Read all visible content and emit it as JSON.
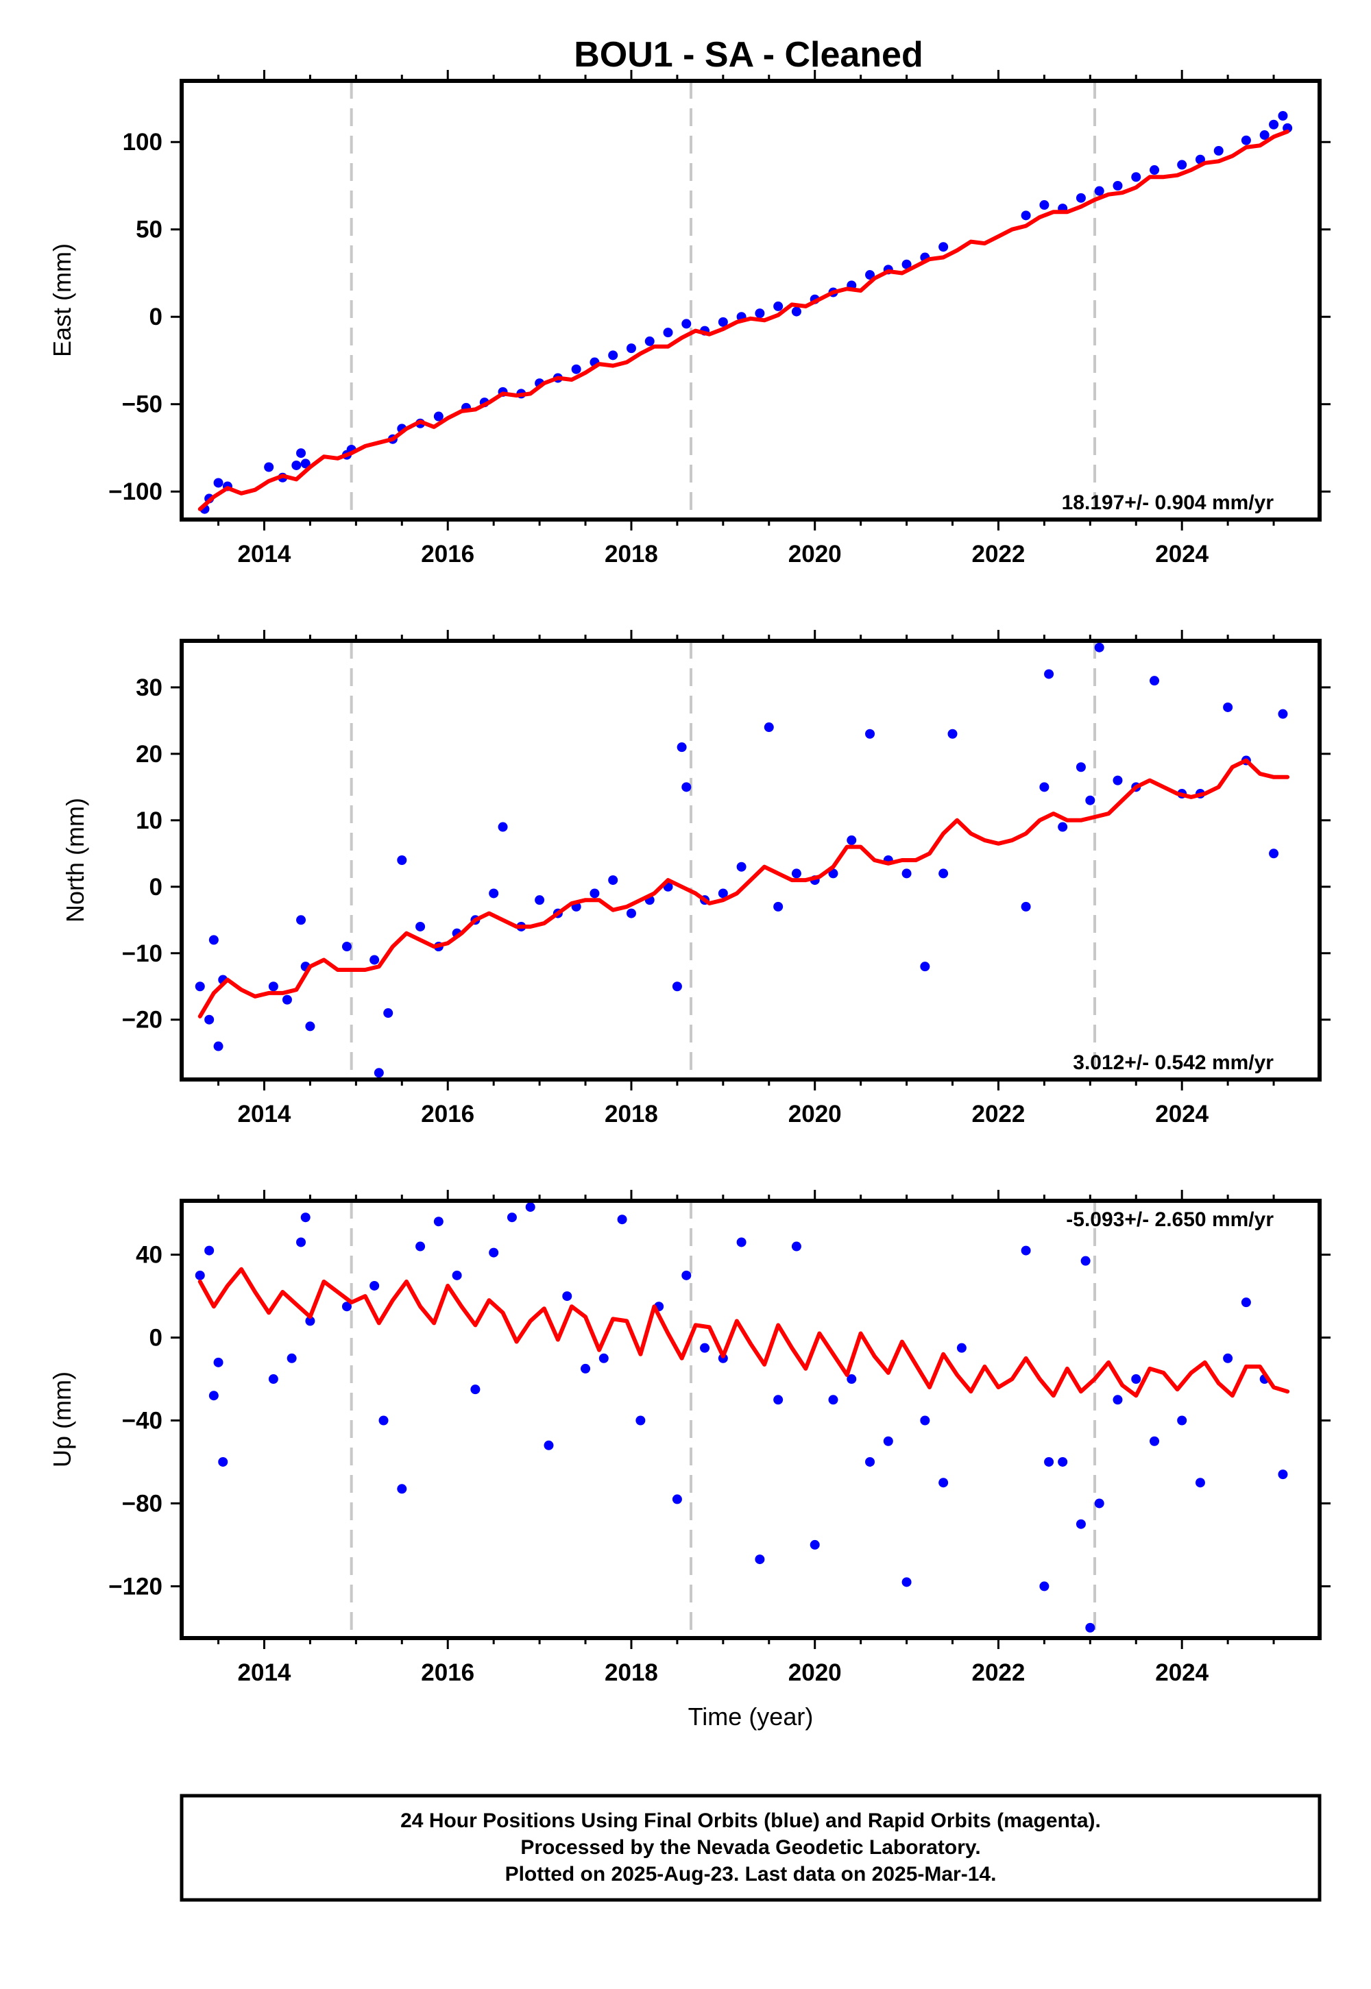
{
  "colors": {
    "data_points": "#0000ff",
    "model_curve": "#ff0000",
    "event_lines": "#c8c8c8",
    "frame": "#000000"
  },
  "chart_data": [
    {
      "type": "scatter",
      "title": "BOU1  - SA - Cleaned",
      "ylabel": "East (mm)",
      "xlabel": "",
      "xlim": [
        2013.1,
        2025.5
      ],
      "ylim": [
        -116,
        135
      ],
      "xticks": [
        2014,
        2016,
        2018,
        2020,
        2022,
        2024
      ],
      "yticks": [
        -100,
        -50,
        0,
        50,
        100
      ],
      "vertical_event_lines": [
        2014.95,
        2018.65,
        2023.05
      ],
      "rate_text": "18.197+/- 0.904 mm/yr",
      "series": [
        {
          "style": "points",
          "x": [
            2013.35,
            2013.4,
            2013.5,
            2013.6,
            2014.05,
            2014.2,
            2014.35,
            2014.4,
            2014.45,
            2014.9,
            2014.95,
            2015.4,
            2015.5,
            2015.7,
            2015.9,
            2016.2,
            2016.4,
            2016.6,
            2016.8,
            2017.0,
            2017.2,
            2017.4,
            2017.6,
            2017.8,
            2018.0,
            2018.2,
            2018.4,
            2018.6,
            2018.8,
            2019.0,
            2019.2,
            2019.4,
            2019.6,
            2019.8,
            2020.0,
            2020.2,
            2020.4,
            2020.6,
            2020.8,
            2021.0,
            2021.2,
            2021.4,
            2022.3,
            2022.5,
            2022.7,
            2022.9,
            2023.1,
            2023.3,
            2023.5,
            2023.7,
            2024.0,
            2024.2,
            2024.4,
            2024.7,
            2024.9,
            2025.0,
            2025.1,
            2025.15
          ],
          "y": [
            -110,
            -104,
            -95,
            -97,
            -86,
            -92,
            -85,
            -78,
            -84,
            -79,
            -76,
            -70,
            -64,
            -61,
            -57,
            -52,
            -49,
            -43,
            -44,
            -38,
            -35,
            -30,
            -26,
            -22,
            -18,
            -14,
            -9,
            -4,
            -8,
            -3,
            0,
            2,
            6,
            3,
            10,
            14,
            18,
            24,
            27,
            30,
            34,
            40,
            58,
            64,
            62,
            68,
            72,
            75,
            80,
            84,
            87,
            90,
            95,
            101,
            104,
            110,
            115,
            108
          ]
        },
        {
          "style": "line",
          "x": [
            2013.3,
            2013.45,
            2013.6,
            2013.75,
            2013.9,
            2014.05,
            2014.2,
            2014.35,
            2014.5,
            2014.65,
            2014.8,
            2014.95,
            2015.1,
            2015.25,
            2015.4,
            2015.55,
            2015.7,
            2015.85,
            2016.0,
            2016.15,
            2016.3,
            2016.45,
            2016.6,
            2016.75,
            2016.9,
            2017.05,
            2017.2,
            2017.35,
            2017.5,
            2017.65,
            2017.8,
            2017.95,
            2018.1,
            2018.25,
            2018.4,
            2018.55,
            2018.7,
            2018.85,
            2019.0,
            2019.15,
            2019.3,
            2019.45,
            2019.6,
            2019.75,
            2019.9,
            2020.05,
            2020.2,
            2020.35,
            2020.5,
            2020.65,
            2020.8,
            2020.95,
            2021.1,
            2021.25,
            2021.4,
            2021.55,
            2021.7,
            2021.85,
            2022.0,
            2022.15,
            2022.3,
            2022.45,
            2022.6,
            2022.75,
            2022.9,
            2023.05,
            2023.2,
            2023.35,
            2023.5,
            2023.65,
            2023.8,
            2023.95,
            2024.1,
            2024.25,
            2024.4,
            2024.55,
            2024.7,
            2024.85,
            2025.0,
            2025.15
          ],
          "y": [
            -110,
            -103,
            -98,
            -101,
            -99,
            -94,
            -91,
            -93,
            -86,
            -80,
            -81,
            -78,
            -74,
            -72,
            -70,
            -64,
            -60,
            -63,
            -58,
            -54,
            -53,
            -49,
            -44,
            -45,
            -44,
            -38,
            -35,
            -36,
            -32,
            -27,
            -28,
            -26,
            -21,
            -17,
            -17,
            -12,
            -8,
            -10,
            -7,
            -3,
            -1,
            -2,
            1,
            7,
            6,
            10,
            14,
            16,
            15,
            22,
            26,
            25,
            29,
            33,
            34,
            38,
            43,
            42,
            46,
            50,
            52,
            57,
            60,
            60,
            63,
            67,
            70,
            71,
            74,
            80,
            80,
            81,
            84,
            88,
            89,
            92,
            97,
            98,
            103,
            106
          ]
        }
      ]
    },
    {
      "type": "scatter",
      "title": "",
      "ylabel": "North (mm)",
      "xlabel": "",
      "xlim": [
        2013.1,
        2025.5
      ],
      "ylim": [
        -29,
        37
      ],
      "xticks": [
        2014,
        2016,
        2018,
        2020,
        2022,
        2024
      ],
      "yticks": [
        -20,
        -10,
        0,
        10,
        20,
        30
      ],
      "vertical_event_lines": [
        2014.95,
        2018.65,
        2023.05
      ],
      "rate_text": "3.012+/- 0.542 mm/yr",
      "series": [
        {
          "style": "points",
          "x": [
            2013.3,
            2013.4,
            2013.45,
            2013.5,
            2013.55,
            2014.1,
            2014.25,
            2014.4,
            2014.45,
            2014.5,
            2014.9,
            2015.2,
            2015.25,
            2015.35,
            2015.5,
            2015.7,
            2015.9,
            2016.1,
            2016.3,
            2016.5,
            2016.6,
            2016.8,
            2017.0,
            2017.2,
            2017.4,
            2017.6,
            2017.8,
            2018.0,
            2018.2,
            2018.4,
            2018.5,
            2018.55,
            2018.6,
            2018.8,
            2019.0,
            2019.2,
            2019.5,
            2019.6,
            2019.8,
            2020.0,
            2020.2,
            2020.4,
            2020.6,
            2020.8,
            2021.0,
            2021.2,
            2021.4,
            2021.5,
            2022.3,
            2022.5,
            2022.55,
            2022.7,
            2022.9,
            2023.0,
            2023.1,
            2023.3,
            2023.5,
            2023.7,
            2024.0,
            2024.2,
            2024.5,
            2024.7,
            2025.0,
            2025.1
          ],
          "y": [
            -15,
            -20,
            -8,
            -24,
            -14,
            -15,
            -17,
            -5,
            -12,
            -21,
            -9,
            -11,
            -28,
            -19,
            4,
            -6,
            -9,
            -7,
            -5,
            -1,
            9,
            -6,
            -2,
            -4,
            -3,
            -1,
            1,
            -4,
            -2,
            0,
            -15,
            21,
            15,
            -2,
            -1,
            3,
            24,
            -3,
            2,
            1,
            2,
            7,
            23,
            4,
            2,
            -12,
            2,
            23,
            -3,
            15,
            32,
            9,
            18,
            13,
            36,
            16,
            15,
            31,
            14,
            14,
            27,
            19,
            5,
            26
          ]
        },
        {
          "style": "line",
          "x": [
            2013.3,
            2013.45,
            2013.6,
            2013.75,
            2013.9,
            2014.05,
            2014.2,
            2014.35,
            2014.5,
            2014.65,
            2014.8,
            2014.95,
            2015.1,
            2015.25,
            2015.4,
            2015.55,
            2015.7,
            2015.85,
            2016.0,
            2016.15,
            2016.3,
            2016.45,
            2016.6,
            2016.75,
            2016.9,
            2017.05,
            2017.2,
            2017.35,
            2017.5,
            2017.65,
            2017.8,
            2017.95,
            2018.1,
            2018.25,
            2018.4,
            2018.55,
            2018.7,
            2018.85,
            2019.0,
            2019.15,
            2019.3,
            2019.45,
            2019.6,
            2019.75,
            2019.9,
            2020.05,
            2020.2,
            2020.35,
            2020.5,
            2020.65,
            2020.8,
            2020.95,
            2021.1,
            2021.25,
            2021.4,
            2021.55,
            2021.7,
            2021.85,
            2022.0,
            2022.15,
            2022.3,
            2022.45,
            2022.6,
            2022.75,
            2022.9,
            2023.05,
            2023.2,
            2023.35,
            2023.5,
            2023.65,
            2023.8,
            2023.95,
            2024.1,
            2024.25,
            2024.4,
            2024.55,
            2024.7,
            2024.85,
            2025.0,
            2025.15
          ],
          "y": [
            -19.5,
            -16,
            -14,
            -15.5,
            -16.5,
            -16,
            -16,
            -15.5,
            -12,
            -11,
            -12.5,
            -12.5,
            -12.5,
            -12,
            -9,
            -7,
            -8,
            -9,
            -8.5,
            -7,
            -5,
            -4,
            -5,
            -6,
            -6,
            -5.5,
            -4,
            -2.5,
            -2,
            -2,
            -3.5,
            -3,
            -2,
            -1,
            1,
            0,
            -1,
            -2.5,
            -2,
            -1,
            1,
            3,
            2,
            1,
            1,
            1.5,
            3,
            6,
            6,
            4,
            3.5,
            4,
            4,
            5,
            8,
            10,
            8,
            7,
            6.5,
            7,
            8,
            10,
            11,
            10,
            10,
            10.5,
            11,
            13,
            15,
            16,
            15,
            14,
            13.5,
            14,
            15,
            18,
            19,
            17,
            16.5,
            16.5
          ]
        }
      ]
    },
    {
      "type": "scatter",
      "title": "",
      "ylabel": "Up (mm)",
      "xlabel": "Time (year)",
      "xlim": [
        2013.1,
        2025.5
      ],
      "ylim": [
        -145,
        66
      ],
      "xticks": [
        2014,
        2016,
        2018,
        2020,
        2022,
        2024
      ],
      "yticks": [
        -120,
        -80,
        -40,
        0,
        40
      ],
      "vertical_event_lines": [
        2014.95,
        2018.65,
        2023.05
      ],
      "rate_text": "-5.093+/- 2.650 mm/yr",
      "series": [
        {
          "style": "points",
          "x": [
            2013.3,
            2013.4,
            2013.45,
            2013.5,
            2013.55,
            2014.1,
            2014.3,
            2014.4,
            2014.45,
            2014.5,
            2014.9,
            2015.2,
            2015.3,
            2015.5,
            2015.7,
            2015.9,
            2016.1,
            2016.3,
            2016.5,
            2016.7,
            2016.9,
            2017.1,
            2017.3,
            2017.5,
            2017.7,
            2017.9,
            2018.1,
            2018.3,
            2018.5,
            2018.6,
            2018.8,
            2019.0,
            2019.2,
            2019.4,
            2019.6,
            2019.8,
            2020.0,
            2020.2,
            2020.4,
            2020.6,
            2020.8,
            2021.0,
            2021.2,
            2021.4,
            2021.6,
            2022.3,
            2022.5,
            2022.55,
            2022.7,
            2022.9,
            2022.95,
            2023.0,
            2023.1,
            2023.3,
            2023.5,
            2023.7,
            2024.0,
            2024.2,
            2024.5,
            2024.7,
            2024.9,
            2025.1
          ],
          "y": [
            30,
            42,
            -28,
            -12,
            -60,
            -20,
            -10,
            46,
            58,
            8,
            15,
            25,
            -40,
            -73,
            44,
            56,
            30,
            -25,
            41,
            58,
            63,
            -52,
            20,
            -15,
            -10,
            57,
            -40,
            15,
            -78,
            30,
            -5,
            -10,
            46,
            -107,
            -30,
            44,
            -100,
            -30,
            -20,
            -60,
            -50,
            -118,
            -40,
            -70,
            -5,
            42,
            -120,
            -60,
            -60,
            -90,
            37,
            -140,
            -80,
            -30,
            -20,
            -50,
            -40,
            -70,
            -10,
            17,
            -20,
            -66
          ]
        },
        {
          "style": "line",
          "x": [
            2013.3,
            2013.45,
            2013.6,
            2013.75,
            2013.9,
            2014.05,
            2014.2,
            2014.35,
            2014.5,
            2014.65,
            2014.8,
            2014.95,
            2015.1,
            2015.25,
            2015.4,
            2015.55,
            2015.7,
            2015.85,
            2016.0,
            2016.15,
            2016.3,
            2016.45,
            2016.6,
            2016.75,
            2016.9,
            2017.05,
            2017.2,
            2017.35,
            2017.5,
            2017.65,
            2017.8,
            2017.95,
            2018.1,
            2018.25,
            2018.4,
            2018.55,
            2018.7,
            2018.85,
            2019.0,
            2019.15,
            2019.3,
            2019.45,
            2019.6,
            2019.75,
            2019.9,
            2020.05,
            2020.2,
            2020.35,
            2020.5,
            2020.65,
            2020.8,
            2020.95,
            2021.1,
            2021.25,
            2021.4,
            2021.55,
            2021.7,
            2021.85,
            2022.0,
            2022.15,
            2022.3,
            2022.45,
            2022.6,
            2022.75,
            2022.9,
            2023.05,
            2023.2,
            2023.35,
            2023.5,
            2023.65,
            2023.8,
            2023.95,
            2024.1,
            2024.25,
            2024.4,
            2024.55,
            2024.7,
            2024.85,
            2025.0,
            2025.15
          ],
          "y": [
            27,
            15,
            25,
            33,
            22,
            12,
            22,
            16,
            10,
            27,
            22,
            17,
            20,
            7,
            18,
            27,
            15,
            7,
            25,
            15,
            6,
            18,
            12,
            -2,
            8,
            14,
            -1,
            15,
            10,
            -6,
            9,
            8,
            -8,
            15,
            2,
            -10,
            6,
            5,
            -9,
            8,
            -3,
            -13,
            6,
            -5,
            -15,
            2,
            -8,
            -18,
            2,
            -9,
            -17,
            -2,
            -13,
            -24,
            -8,
            -18,
            -26,
            -14,
            -24,
            -20,
            -10,
            -20,
            -28,
            -15,
            -26,
            -20,
            -12,
            -23,
            -28,
            -15,
            -17,
            -25,
            -17,
            -12,
            -22,
            -28,
            -14,
            -14,
            -24,
            -26
          ]
        }
      ]
    }
  ],
  "footer": {
    "line1": "24 Hour Positions Using Final Orbits (blue) and Rapid Orbits (magenta).",
    "line2": "Processed by the Nevada Geodetic Laboratory.",
    "line3": "Plotted on 2025-Aug-23. Last data on 2025-Mar-14."
  }
}
